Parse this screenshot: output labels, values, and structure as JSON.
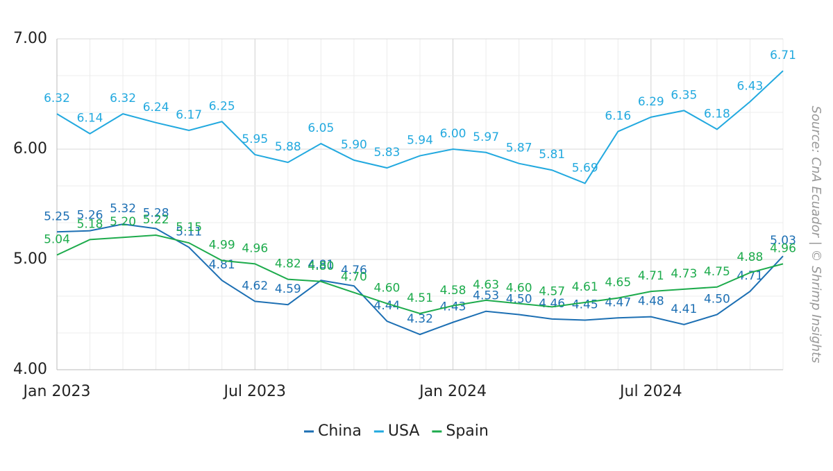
{
  "chart_data": {
    "type": "line",
    "categories": [
      "Jan 2023",
      null,
      null,
      null,
      null,
      null,
      "Jul 2023",
      null,
      null,
      null,
      null,
      null,
      "Jan 2024",
      null,
      null,
      null,
      null,
      null,
      "Jul 2024",
      null,
      null,
      null,
      null
    ],
    "series": [
      {
        "name": "China",
        "color": "#1c6fb3",
        "values": [
          5.25,
          5.26,
          5.32,
          5.28,
          5.11,
          4.81,
          4.62,
          4.59,
          4.81,
          4.76,
          4.44,
          4.32,
          4.43,
          4.53,
          4.5,
          4.46,
          4.45,
          4.47,
          4.48,
          4.41,
          4.5,
          4.71,
          5.03
        ],
        "value_labels": [
          "5.25",
          "5.26",
          "5.32",
          "5.28",
          "5.11",
          "4.81",
          "4.62",
          "4.59",
          "4.81",
          "4.76",
          "4.44",
          "4.32",
          "4.43",
          "4.53",
          "4.50",
          "4.46",
          "4.45",
          "4.47",
          "4.48",
          "4.41",
          "4.50",
          "4.71",
          "5.03"
        ]
      },
      {
        "name": "USA",
        "color": "#22a9df",
        "values": [
          6.32,
          6.14,
          6.32,
          6.24,
          6.17,
          6.25,
          5.95,
          5.88,
          6.05,
          5.9,
          5.83,
          5.94,
          6.0,
          5.97,
          5.87,
          5.81,
          5.69,
          6.16,
          6.29,
          6.35,
          6.18,
          6.43,
          6.71
        ],
        "value_labels": [
          "6.32",
          "6.14",
          "6.32",
          "6.24",
          "6.17",
          "6.25",
          "5.95",
          "5.88",
          "6.05",
          "5.90",
          "5.83",
          "5.94",
          "6.00",
          "5.97",
          "5.87",
          "5.81",
          "5.69",
          "6.16",
          "6.29",
          "6.35",
          "6.18",
          "6.43",
          "6.71"
        ]
      },
      {
        "name": "Spain",
        "color": "#1dab4c",
        "values": [
          5.04,
          5.18,
          5.2,
          5.22,
          5.15,
          4.99,
          4.96,
          4.82,
          4.8,
          4.7,
          4.6,
          4.51,
          4.58,
          4.63,
          4.6,
          4.57,
          4.61,
          4.65,
          4.71,
          4.73,
          4.75,
          4.88,
          4.96
        ],
        "value_labels": [
          "5.04",
          "5.18",
          "5.20",
          "5.22",
          "5.15",
          "4.99",
          "4.96",
          "4.82",
          "4.80",
          "4.70",
          "4.60",
          "4.51",
          "4.58",
          "4.63",
          "4.60",
          "4.57",
          "4.61",
          "4.65",
          "4.71",
          "4.73",
          "4.75",
          "4.88",
          "4.96"
        ]
      }
    ],
    "ylim": [
      4,
      7
    ],
    "yticks": [
      {
        "value": 4,
        "label": "4.00"
      },
      {
        "value": 5,
        "label": "5.00"
      },
      {
        "value": 6,
        "label": "6.00"
      },
      {
        "value": 7,
        "label": "7.00"
      }
    ],
    "grid": true,
    "legend": "bottom",
    "source": "Source: CnA Ecuador | © Shrimp Insights"
  }
}
